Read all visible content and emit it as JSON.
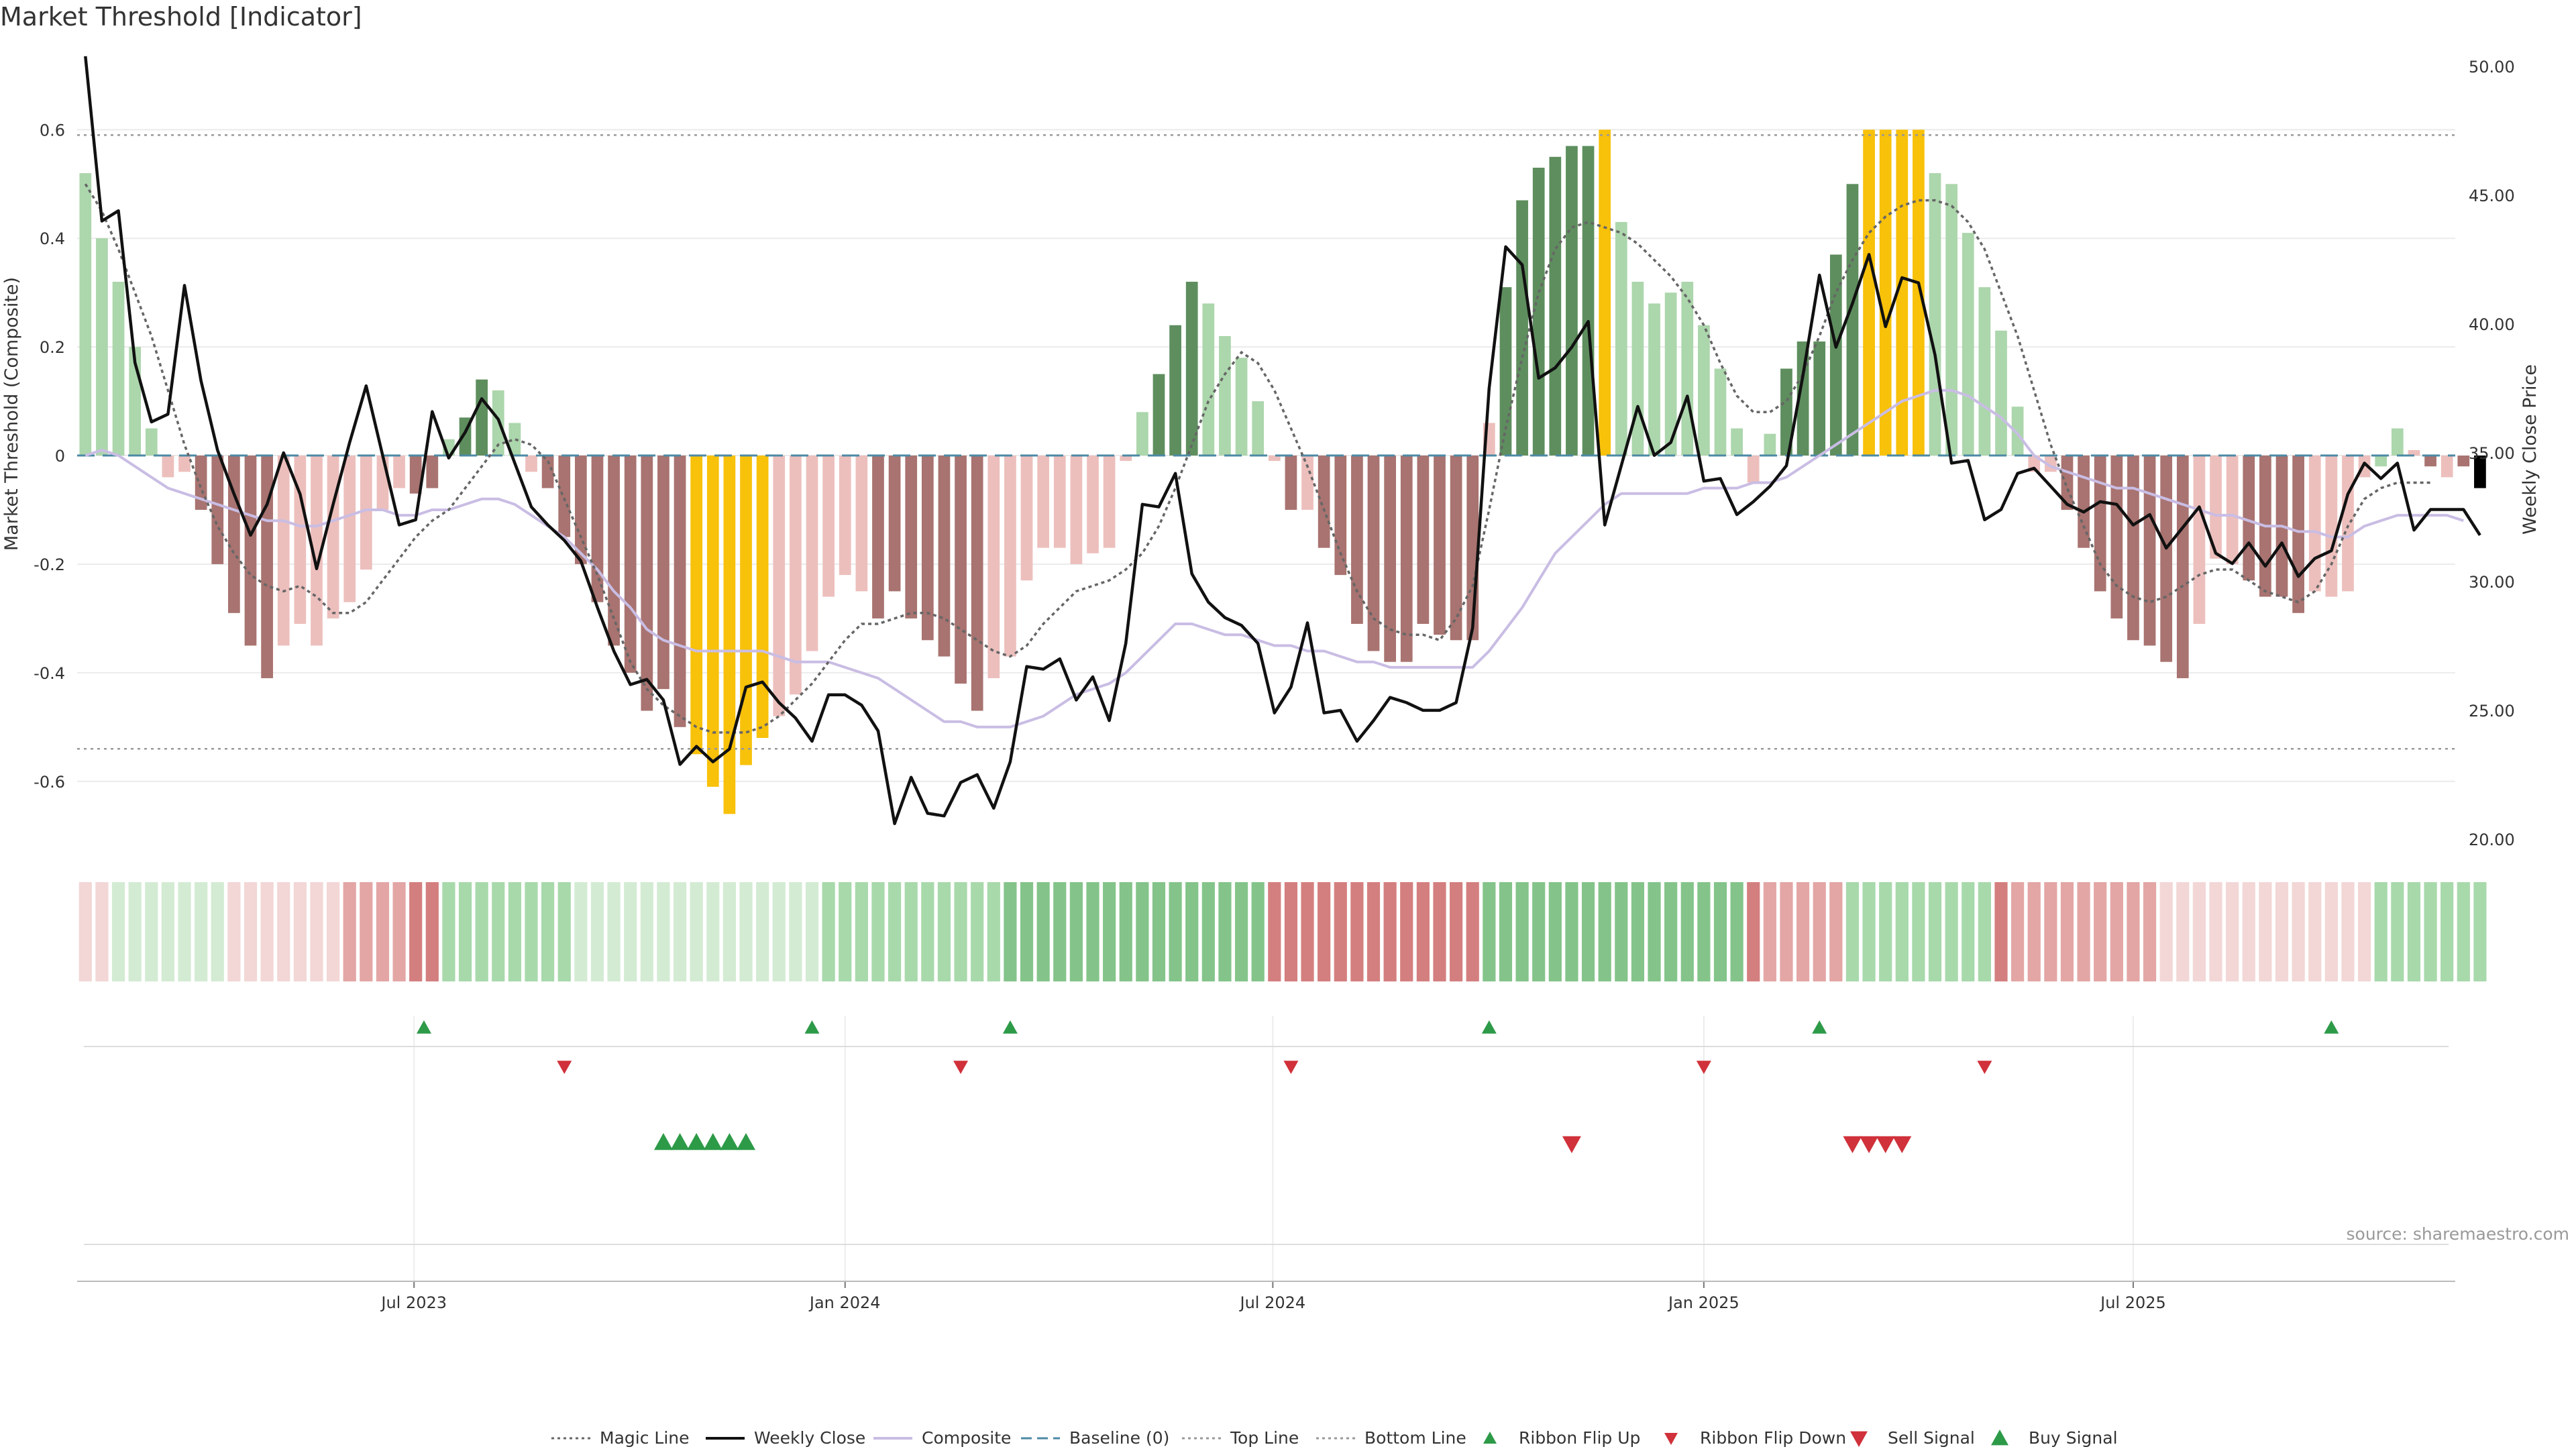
{
  "title": "Market Threshold [Indicator]",
  "source": "source: sharemaestro.com",
  "colors": {
    "pos_dark": "#5e8e5e",
    "pos_light": "#acd6ac",
    "neg_dark": "#a87370",
    "neg_light": "#ecbfbd",
    "extreme": "#f8c10a",
    "close": "#111111",
    "composite": "#c9bde4",
    "magic": "#666666",
    "baseline": "#4c8aa5",
    "buy": "#2d9a48",
    "sell": "#d0313a"
  },
  "chart_data": {
    "type": "bar",
    "ylabel": "Market Threshold (Composite)",
    "y2label": "Weekly Close Price",
    "ylim": [
      -0.73,
      0.74
    ],
    "y2lim": [
      19.5,
      50.5
    ],
    "yticks": [
      "0.6",
      "0.4",
      "0.2",
      "0",
      "-0.2",
      "-0.4",
      "-0.6"
    ],
    "y2ticks": [
      "50.00",
      "45.00",
      "40.00",
      "35.00",
      "30.00",
      "25.00",
      "20.00"
    ],
    "xticks": [
      "Jul 2023",
      "Jan 2024",
      "Jul 2024",
      "Jan 2025",
      "Jul 2025"
    ],
    "xtick_weeks": [
      20.4,
      46.5,
      72.4,
      98.5,
      124.5
    ],
    "week_count": 144,
    "top_line": 0.59,
    "bottom_line": -0.54,
    "baseline": 0,
    "composite": [
      0.52,
      0.4,
      0.32,
      0.2,
      0.05,
      -0.04,
      -0.03,
      -0.1,
      -0.2,
      -0.29,
      -0.35,
      -0.41,
      -0.35,
      -0.31,
      -0.35,
      -0.3,
      -0.27,
      -0.21,
      -0.1,
      -0.06,
      -0.07,
      -0.06,
      0.03,
      0.07,
      0.14,
      0.12,
      0.06,
      -0.03,
      -0.06,
      -0.15,
      -0.2,
      -0.27,
      -0.35,
      -0.4,
      -0.47,
      -0.43,
      -0.5,
      -0.55,
      -0.61,
      -0.66,
      -0.57,
      -0.52,
      -0.48,
      -0.44,
      -0.36,
      -0.26,
      -0.22,
      -0.25,
      -0.3,
      -0.25,
      -0.3,
      -0.34,
      -0.37,
      -0.42,
      -0.47,
      -0.41,
      -0.37,
      -0.23,
      -0.17,
      -0.17,
      -0.2,
      -0.18,
      -0.17,
      -0.01,
      0.08,
      0.15,
      0.24,
      0.32,
      0.28,
      0.22,
      0.18,
      0.1,
      -0.01,
      -0.1,
      -0.1,
      -0.17,
      -0.22,
      -0.31,
      -0.36,
      -0.38,
      -0.38,
      -0.31,
      -0.33,
      -0.34,
      -0.34,
      0.06,
      0.31,
      0.47,
      0.53,
      0.55,
      0.57,
      0.57,
      0.6,
      0.43,
      0.32,
      0.28,
      0.3,
      0.32,
      0.24,
      0.16,
      0.05,
      -0.05,
      0.04,
      0.16,
      0.21,
      0.21,
      0.37,
      0.5,
      0.6,
      0.6,
      0.6,
      0.6,
      0.52,
      0.5,
      0.41,
      0.31,
      0.23,
      0.09,
      -0.03,
      -0.03,
      -0.1,
      -0.17,
      -0.25,
      -0.3,
      -0.34,
      -0.35,
      -0.38,
      -0.41,
      -0.31,
      -0.19,
      -0.2,
      -0.23,
      -0.26,
      -0.26,
      -0.29,
      -0.25,
      -0.26,
      -0.25,
      -0.04,
      -0.02,
      0.05,
      0.01,
      -0.02,
      -0.04,
      -0.02,
      -0.06
    ],
    "bar_class": [
      "pl",
      "pl",
      "pl",
      "pl",
      "pl",
      "nl",
      "nl",
      "nd",
      "nd",
      "nd",
      "nd",
      "nd",
      "nl",
      "nl",
      "nl",
      "nl",
      "nl",
      "nl",
      "nl",
      "nl",
      "nd",
      "nd",
      "pl",
      "pd",
      "pd",
      "pl",
      "pl",
      "nl",
      "nd",
      "nd",
      "nd",
      "nd",
      "nd",
      "nd",
      "nd",
      "nd",
      "nd",
      "ex",
      "ex",
      "ex",
      "ex",
      "ex",
      "nl",
      "nl",
      "nl",
      "nl",
      "nl",
      "nl",
      "nd",
      "nd",
      "nd",
      "nd",
      "nd",
      "nd",
      "nd",
      "nl",
      "nl",
      "nl",
      "nl",
      "nl",
      "nl",
      "nl",
      "nl",
      "nl",
      "pl",
      "pd",
      "pd",
      "pd",
      "pl",
      "pl",
      "pl",
      "pl",
      "nl",
      "nd",
      "nl",
      "nd",
      "nd",
      "nd",
      "nd",
      "nd",
      "nd",
      "nd",
      "nd",
      "nd",
      "nd",
      "nl",
      "pd",
      "pd",
      "pd",
      "pd",
      "pd",
      "pd",
      "ex",
      "pl",
      "pl",
      "pl",
      "pl",
      "pl",
      "pl",
      "pl",
      "pl",
      "nl",
      "pl",
      "pd",
      "pd",
      "pd",
      "pd",
      "pd",
      "ex",
      "ex",
      "ex",
      "ex",
      "pl",
      "pl",
      "pl",
      "pl",
      "pl",
      "pl",
      "nl",
      "nl",
      "nd",
      "nd",
      "nd",
      "nd",
      "nd",
      "nd",
      "nd",
      "nd",
      "nl",
      "nl",
      "nl",
      "nd",
      "nd",
      "nd",
      "nd",
      "nl",
      "nl",
      "nl",
      "nl",
      "pl",
      "pl",
      "nl",
      "nd",
      "nl",
      "nd"
    ],
    "close": [
      50.4,
      44.0,
      44.4,
      38.5,
      36.2,
      36.5,
      41.5,
      37.8,
      35.1,
      33.4,
      31.8,
      33.0,
      35.0,
      33.4,
      30.5,
      33.0,
      35.4,
      37.6,
      34.9,
      32.2,
      32.4,
      36.6,
      34.8,
      35.8,
      37.1,
      36.3,
      34.6,
      32.9,
      32.2,
      31.6,
      30.8,
      29.0,
      27.3,
      26.0,
      26.2,
      25.4,
      22.9,
      23.6,
      23.0,
      23.5,
      25.9,
      26.1,
      25.3,
      24.7,
      23.8,
      25.6,
      25.6,
      25.2,
      24.2,
      20.6,
      22.4,
      21.0,
      20.9,
      22.2,
      22.5,
      21.2,
      23.0,
      26.7,
      26.6,
      27.0,
      25.4,
      26.3,
      24.6,
      27.6,
      33.0,
      32.9,
      34.2,
      30.3,
      29.2,
      28.6,
      28.3,
      27.6,
      24.9,
      25.9,
      28.4,
      24.9,
      25.0,
      23.8,
      24.6,
      25.5,
      25.3,
      25.0,
      25.0,
      25.3,
      28.2,
      37.5,
      43.0,
      42.3,
      37.9,
      38.3,
      39.1,
      40.1,
      32.2,
      34.5,
      36.8,
      34.9,
      35.4,
      37.2,
      33.9,
      34.0,
      32.6,
      33.1,
      33.7,
      34.5,
      38.0,
      41.9,
      39.1,
      40.8,
      42.7,
      39.9,
      41.8,
      41.6,
      38.8,
      34.6,
      34.7,
      32.4,
      32.8,
      34.2,
      34.4,
      33.7,
      33.0,
      32.7,
      33.1,
      33.0,
      32.2,
      32.6,
      31.3,
      32.1,
      32.9,
      31.1,
      30.7,
      31.5,
      30.6,
      31.5,
      30.2,
      30.9,
      31.2,
      33.4,
      34.6,
      34.0,
      34.6,
      32.0,
      32.8,
      32.8,
      32.8,
      31.8
    ],
    "composite_line": [
      0.0,
      0.01,
      0.0,
      -0.02,
      -0.04,
      -0.06,
      -0.07,
      -0.08,
      -0.09,
      -0.1,
      -0.11,
      -0.12,
      -0.12,
      -0.13,
      -0.13,
      -0.12,
      -0.11,
      -0.1,
      -0.1,
      -0.11,
      -0.11,
      -0.1,
      -0.1,
      -0.09,
      -0.08,
      -0.08,
      -0.09,
      -0.11,
      -0.13,
      -0.15,
      -0.18,
      -0.21,
      -0.25,
      -0.28,
      -0.32,
      -0.34,
      -0.35,
      -0.36,
      -0.36,
      -0.36,
      -0.36,
      -0.36,
      -0.37,
      -0.38,
      -0.38,
      -0.38,
      -0.39,
      -0.4,
      -0.41,
      -0.43,
      -0.45,
      -0.47,
      -0.49,
      -0.49,
      -0.5,
      -0.5,
      -0.5,
      -0.49,
      -0.48,
      -0.46,
      -0.44,
      -0.43,
      -0.42,
      -0.4,
      -0.37,
      -0.34,
      -0.31,
      -0.31,
      -0.32,
      -0.33,
      -0.33,
      -0.34,
      -0.35,
      -0.35,
      -0.36,
      -0.36,
      -0.37,
      -0.38,
      -0.38,
      -0.39,
      -0.39,
      -0.39,
      -0.39,
      -0.39,
      -0.39,
      -0.36,
      -0.32,
      -0.28,
      -0.23,
      -0.18,
      -0.15,
      -0.12,
      -0.09,
      -0.07,
      -0.07,
      -0.07,
      -0.07,
      -0.07,
      -0.06,
      -0.06,
      -0.06,
      -0.05,
      -0.05,
      -0.04,
      -0.02,
      0.0,
      0.02,
      0.04,
      0.06,
      0.08,
      0.1,
      0.11,
      0.12,
      0.12,
      0.11,
      0.09,
      0.07,
      0.04,
      0.0,
      -0.02,
      -0.03,
      -0.04,
      -0.05,
      -0.06,
      -0.06,
      -0.07,
      -0.08,
      -0.09,
      -0.1,
      -0.11,
      -0.11,
      -0.12,
      -0.13,
      -0.13,
      -0.14,
      -0.14,
      -0.15,
      -0.15,
      -0.13,
      -0.12,
      -0.11,
      -0.11,
      -0.11,
      -0.11,
      -0.12
    ],
    "magic_line": [
      0.5,
      0.45,
      0.38,
      0.3,
      0.22,
      0.12,
      0.02,
      -0.06,
      -0.13,
      -0.18,
      -0.22,
      -0.24,
      -0.25,
      -0.24,
      -0.26,
      -0.29,
      -0.29,
      -0.27,
      -0.23,
      -0.19,
      -0.15,
      -0.12,
      -0.1,
      -0.06,
      -0.02,
      0.02,
      0.03,
      0.02,
      -0.01,
      -0.08,
      -0.15,
      -0.22,
      -0.3,
      -0.38,
      -0.43,
      -0.46,
      -0.48,
      -0.5,
      -0.51,
      -0.51,
      -0.51,
      -0.5,
      -0.48,
      -0.45,
      -0.42,
      -0.38,
      -0.34,
      -0.31,
      -0.31,
      -0.3,
      -0.29,
      -0.29,
      -0.3,
      -0.32,
      -0.34,
      -0.36,
      -0.37,
      -0.35,
      -0.31,
      -0.28,
      -0.25,
      -0.24,
      -0.23,
      -0.21,
      -0.18,
      -0.13,
      -0.06,
      0.02,
      0.1,
      0.15,
      0.19,
      0.17,
      0.12,
      0.05,
      -0.02,
      -0.1,
      -0.18,
      -0.25,
      -0.3,
      -0.32,
      -0.33,
      -0.33,
      -0.34,
      -0.3,
      -0.24,
      -0.1,
      0.05,
      0.18,
      0.3,
      0.38,
      0.42,
      0.43,
      0.42,
      0.41,
      0.39,
      0.36,
      0.33,
      0.29,
      0.24,
      0.17,
      0.11,
      0.08,
      0.08,
      0.1,
      0.15,
      0.22,
      0.3,
      0.36,
      0.41,
      0.44,
      0.46,
      0.47,
      0.47,
      0.46,
      0.43,
      0.38,
      0.3,
      0.22,
      0.12,
      0.02,
      -0.06,
      -0.13,
      -0.2,
      -0.24,
      -0.26,
      -0.27,
      -0.26,
      -0.24,
      -0.22,
      -0.21,
      -0.21,
      -0.23,
      -0.25,
      -0.26,
      -0.27,
      -0.25,
      -0.2,
      -0.13,
      -0.08,
      -0.06,
      -0.05,
      -0.05,
      -0.05
    ],
    "ribbon_class": [
      3,
      3,
      4,
      4,
      4,
      4,
      4,
      4,
      4,
      3,
      3,
      3,
      3,
      3,
      3,
      3,
      2,
      2,
      2,
      2,
      1,
      1,
      5,
      5,
      5,
      5,
      5,
      5,
      5,
      5,
      4,
      4,
      4,
      4,
      4,
      4,
      4,
      4,
      4,
      4,
      4,
      4,
      4,
      4,
      4,
      5,
      5,
      5,
      5,
      5,
      5,
      5,
      5,
      5,
      5,
      5,
      6,
      6,
      6,
      6,
      6,
      6,
      6,
      6,
      6,
      6,
      6,
      6,
      6,
      6,
      6,
      6,
      1,
      1,
      1,
      1,
      1,
      1,
      1,
      1,
      1,
      1,
      1,
      1,
      1,
      6,
      6,
      6,
      6,
      6,
      6,
      6,
      6,
      6,
      6,
      6,
      6,
      6,
      6,
      6,
      6,
      1,
      2,
      2,
      2,
      2,
      2,
      5,
      5,
      5,
      5,
      5,
      5,
      5,
      5,
      5,
      1,
      2,
      2,
      2,
      2,
      2,
      2,
      2,
      2,
      2,
      3,
      3,
      3,
      3,
      3,
      3,
      3,
      3,
      3,
      3,
      3,
      3,
      3,
      5,
      5,
      5,
      5,
      5,
      5,
      5
    ],
    "ribbon_flip_up": [
      21,
      44.5,
      56.5,
      85.5,
      105.5,
      136.5
    ],
    "ribbon_flip_down": [
      29.5,
      53.5,
      73.5,
      98.5,
      115.5
    ],
    "buy_signal": [
      35,
      36,
      37,
      38,
      39,
      40
    ],
    "sell_signal": [
      90,
      107,
      108,
      109,
      110
    ]
  },
  "legend": [
    {
      "label": "Magic Line",
      "kind": "dotted",
      "color": "#666666"
    },
    {
      "label": "Weekly Close",
      "kind": "solid",
      "color": "#111111"
    },
    {
      "label": "Composite",
      "kind": "solid",
      "color": "#c9bde4"
    },
    {
      "label": "Baseline (0)",
      "kind": "dashed",
      "color": "#4c8aa5"
    },
    {
      "label": "Top Line",
      "kind": "dotted",
      "color": "#999999"
    },
    {
      "label": "Bottom Line",
      "kind": "dotted",
      "color": "#999999"
    },
    {
      "label": "Ribbon Flip Up",
      "kind": "tri-up-small",
      "color": "#2d9a48"
    },
    {
      "label": "Ribbon Flip Down",
      "kind": "tri-down-small",
      "color": "#d0313a"
    },
    {
      "label": "Sell Signal",
      "kind": "tri-down",
      "color": "#d0313a"
    },
    {
      "label": "Buy Signal",
      "kind": "tri-up",
      "color": "#2d9a48"
    }
  ]
}
